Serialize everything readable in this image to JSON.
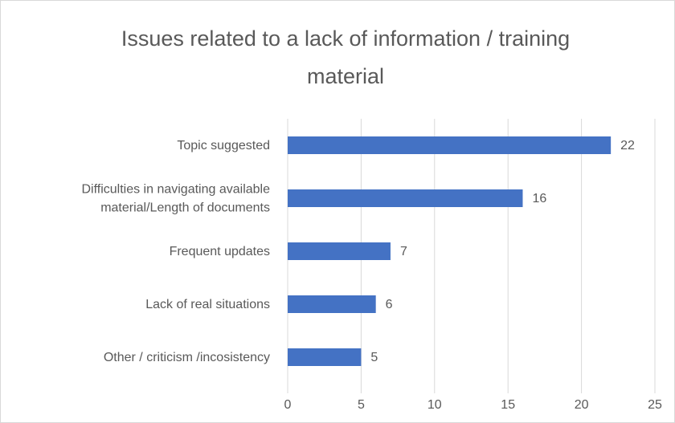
{
  "chart_data": {
    "type": "bar",
    "orientation": "horizontal",
    "title": "Issues related to a lack of information / training material",
    "categories": [
      "Topic suggested",
      "Difficulties in navigating available material/Length of documents",
      "Frequent updates",
      "Lack of real situations",
      "Other / criticism /incosistency"
    ],
    "values": [
      22,
      16,
      7,
      6,
      5
    ],
    "color": "#4472c4",
    "xlim": [
      0,
      25
    ],
    "xticks": [
      0,
      5,
      10,
      15,
      20,
      25
    ],
    "grid": true
  }
}
